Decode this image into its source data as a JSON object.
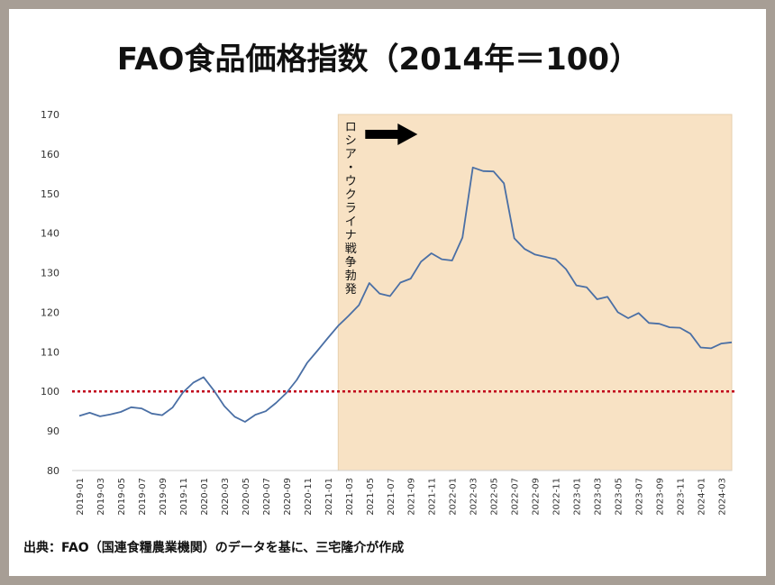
{
  "title": "FAO食品価格指数（2014年＝100）",
  "source": "出典：FAO（国連食糧農業機関）のデータを基に、三宅隆介が作成",
  "chart_data": {
    "type": "line",
    "title": "FAO食品価格指数（2014年＝100）",
    "xlabel": "",
    "ylabel": "",
    "ylim": [
      80,
      170
    ],
    "yticks": [
      80,
      90,
      100,
      110,
      120,
      130,
      140,
      150,
      160,
      170
    ],
    "grid": false,
    "legend": "none",
    "reference_line": {
      "value": 100,
      "color": "#c0001a",
      "style": "dotted"
    },
    "shaded_region": {
      "start": "2021-02",
      "end": "2024-04",
      "color": "#f8e2c4",
      "label": "ロシア・ウクライナ戦争勃発",
      "arrow": "right"
    },
    "xticks": [
      "2019-01",
      "2019-03",
      "2019-05",
      "2019-07",
      "2019-09",
      "2019-11",
      "2020-01",
      "2020-03",
      "2020-05",
      "2020-07",
      "2020-09",
      "2020-11",
      "2021-01",
      "2021-03",
      "2021-05",
      "2021-07",
      "2021-09",
      "2021-11",
      "2022-01",
      "2022-03",
      "2022-05",
      "2022-07",
      "2022-09",
      "2022-11",
      "2023-01",
      "2023-03",
      "2023-05",
      "2023-07",
      "2023-09",
      "2023-11",
      "2024-01",
      "2024-03"
    ],
    "series": [
      {
        "color": "#4a6fa5",
        "x": [
          "2019-01",
          "2019-02",
          "2019-03",
          "2019-04",
          "2019-05",
          "2019-06",
          "2019-07",
          "2019-08",
          "2019-09",
          "2019-10",
          "2019-11",
          "2019-12",
          "2020-01",
          "2020-02",
          "2020-03",
          "2020-04",
          "2020-05",
          "2020-06",
          "2020-07",
          "2020-08",
          "2020-09",
          "2020-10",
          "2020-11",
          "2020-12",
          "2021-01",
          "2021-02",
          "2021-03",
          "2021-04",
          "2021-05",
          "2021-06",
          "2021-07",
          "2021-08",
          "2021-09",
          "2021-10",
          "2021-11",
          "2021-12",
          "2022-01",
          "2022-02",
          "2022-03",
          "2022-04",
          "2022-05",
          "2022-06",
          "2022-07",
          "2022-08",
          "2022-09",
          "2022-10",
          "2022-11",
          "2022-12",
          "2023-01",
          "2023-02",
          "2023-03",
          "2023-04",
          "2023-05",
          "2023-06",
          "2023-07",
          "2023-08",
          "2023-09",
          "2023-10",
          "2023-11",
          "2023-12",
          "2024-01",
          "2024-02",
          "2024-03",
          "2024-04"
        ],
        "values": [
          93.8,
          94.6,
          93.7,
          94.2,
          94.8,
          96.0,
          95.7,
          94.4,
          94.0,
          95.9,
          99.7,
          102.2,
          103.6,
          100.2,
          96.3,
          93.6,
          92.3,
          94.1,
          95.0,
          97.1,
          99.6,
          102.9,
          107.2,
          110.3,
          113.5,
          116.6,
          119.1,
          121.8,
          127.4,
          124.7,
          124.1,
          127.5,
          128.5,
          132.8,
          134.9,
          133.4,
          133.1,
          138.9,
          156.6,
          155.7,
          155.6,
          152.6,
          138.7,
          136.0,
          134.6,
          134.0,
          133.4,
          130.9,
          126.8,
          126.3,
          123.3,
          123.9,
          120.0,
          118.5,
          119.8,
          117.3,
          117.1,
          116.2,
          116.1,
          114.6,
          111.1,
          110.9,
          112.1,
          112.4
        ]
      }
    ]
  }
}
